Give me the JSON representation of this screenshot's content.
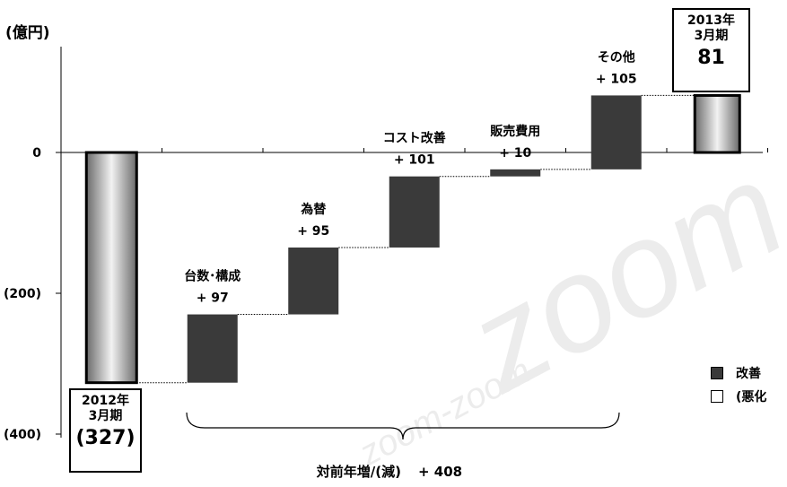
{
  "chart_data": {
    "type": "bar",
    "unit_label": "(億円)",
    "ylim": [
      -400,
      150
    ],
    "yticks": [
      {
        "value": 0,
        "label": "0"
      },
      {
        "value": -200,
        "label": "(200)"
      },
      {
        "value": -400,
        "label": "(400)"
      }
    ],
    "start": {
      "line1": "2012年",
      "line2": "3月期",
      "label": "(327)",
      "value": -327
    },
    "steps": [
      {
        "name": "台数･構成",
        "delta_label": "+ 97",
        "from": -327,
        "to": -230
      },
      {
        "name": "為替",
        "delta_label": "+ 95",
        "from": -230,
        "to": -135
      },
      {
        "name": "コスト改善",
        "delta_label": "+ 101",
        "from": -135,
        "to": -34
      },
      {
        "name": "販売費用",
        "delta_label": "+ 10",
        "from": -34,
        "to": -24
      },
      {
        "name": "その他",
        "delta_label": "+ 105",
        "from": -24,
        "to": 81
      }
    ],
    "end": {
      "line1": "2013年",
      "line2": "3月期",
      "label": "81",
      "value": 81
    },
    "total": {
      "label": "対前年増/(減)",
      "value_label": "+ 408"
    },
    "legend": [
      {
        "label": "改善",
        "color": "#3a3a3a"
      },
      {
        "label": "(悪化",
        "color": "#ffffff"
      }
    ],
    "colors": {
      "improve": "#3a3a3a",
      "total_bar": "#b8b8b8"
    }
  }
}
